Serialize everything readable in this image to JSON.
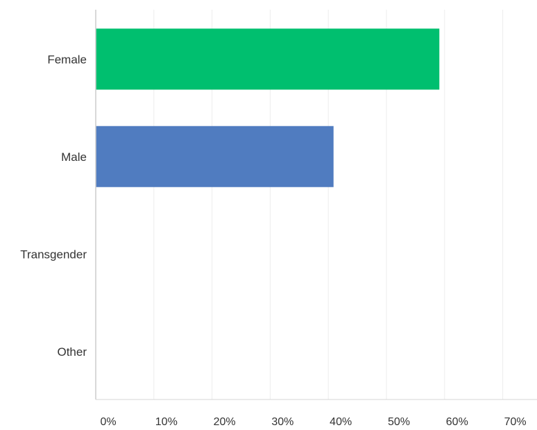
{
  "chart_data": {
    "type": "bar",
    "orientation": "horizontal",
    "categories": [
      "Female",
      "Male",
      "Transgender",
      "Other"
    ],
    "values": [
      59.1,
      40.9,
      0,
      0
    ],
    "colors": [
      "#00BF6F",
      "#507CC0",
      "#00BF6F",
      "#00BF6F"
    ],
    "xlim": [
      0,
      70
    ],
    "x_ticks": [
      0,
      10,
      20,
      30,
      40,
      50,
      60,
      70
    ],
    "tick_labels": [
      "0%",
      "10%",
      "20%",
      "30%",
      "40%",
      "50%",
      "60%",
      "70%"
    ],
    "grid": "vertical",
    "title": "",
    "xlabel": "",
    "ylabel": ""
  }
}
